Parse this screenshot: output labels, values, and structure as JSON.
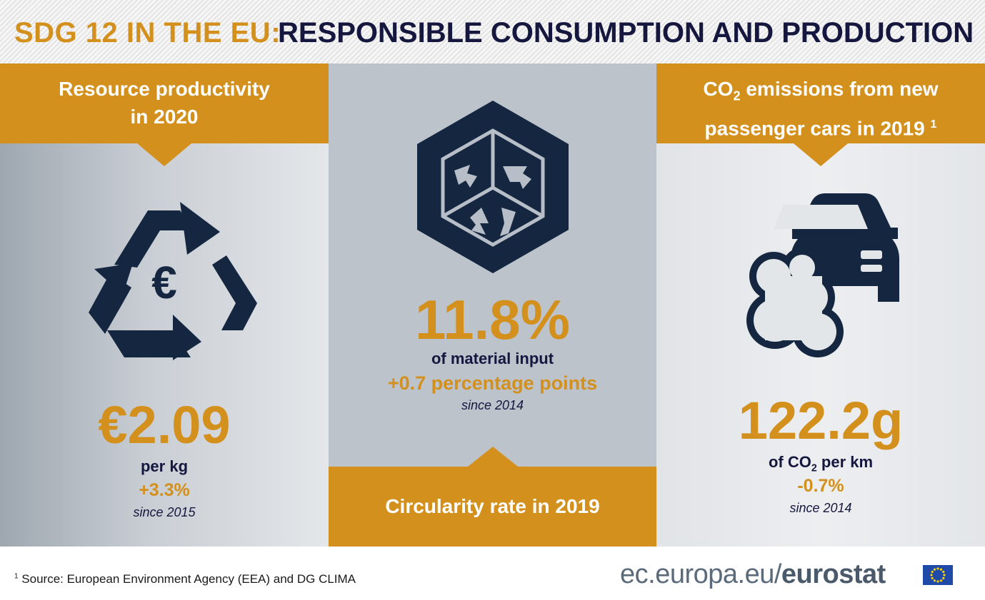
{
  "title": {
    "prefix": "SDG 12 IN THE EU:",
    "main": "RESPONSIBLE CONSUMPTION AND PRODUCTION"
  },
  "panels": {
    "resource": {
      "heading_line1": "Resource productivity",
      "heading_line2": "in 2020",
      "value": "€2.09",
      "unit": "per kg",
      "change": "+3.3%",
      "since": "since 2015",
      "icon": "recycle-euro-icon"
    },
    "circularity": {
      "value": "11.8%",
      "unit": "of material input",
      "change": "+0.7 percentage points",
      "since": "since 2014",
      "footer": "Circularity rate in 2019",
      "icon": "recycle-cube-icon"
    },
    "co2": {
      "heading_line1_a": "CO",
      "heading_line1_sub": "2",
      "heading_line1_b": " emissions from new",
      "heading_line2": "passenger cars in 2019",
      "heading_footnote": "1",
      "value": "122.2g",
      "unit_a": "of CO",
      "unit_sub": "2",
      "unit_b": " per km",
      "change": "-0.7%",
      "since": "since 2014",
      "icon": "car-emissions-icon"
    }
  },
  "footer": {
    "footnote_mark": "1",
    "source": " Source: European Environment Agency (EEA) and DG CLIMA",
    "brand_prefix": "ec.europa.eu/",
    "brand_name": "eurostat"
  },
  "colors": {
    "accent": "#d4901d",
    "navy": "#15173f",
    "icon": "#142640"
  }
}
